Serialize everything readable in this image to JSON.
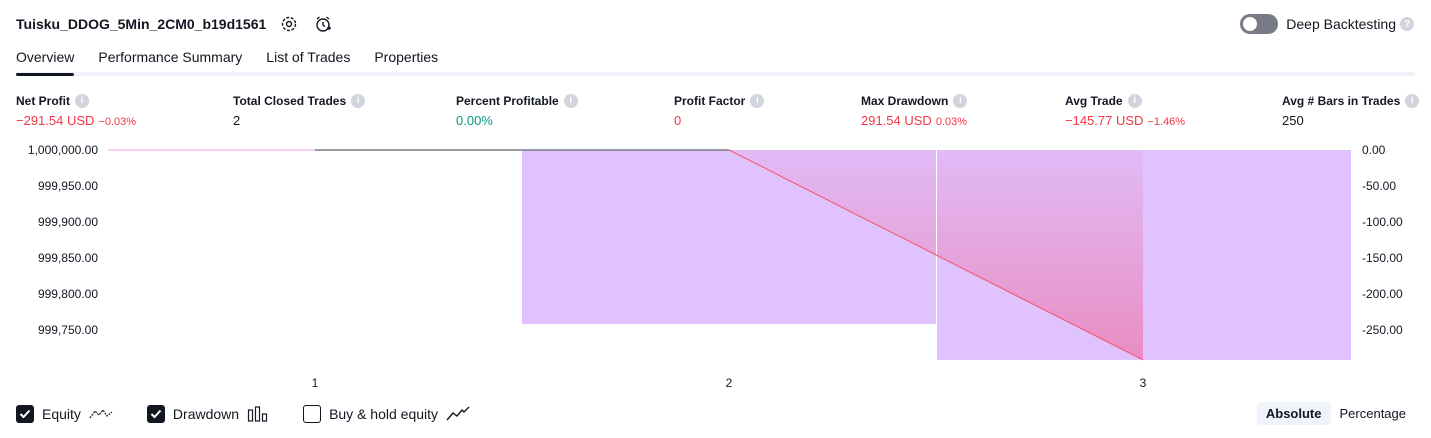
{
  "header": {
    "strategy_name": "Tuisku_DDOG_5Min_2CM0_b19d1561",
    "deep_backtesting_label": "Deep Backtesting",
    "help_glyph": "?"
  },
  "tabs": [
    {
      "label": "Overview",
      "active": true
    },
    {
      "label": "Performance Summary",
      "active": false
    },
    {
      "label": "List of Trades",
      "active": false
    },
    {
      "label": "Properties",
      "active": false
    }
  ],
  "metrics": [
    {
      "title": "Net Profit",
      "value": "−291.54 USD",
      "pct": "−0.03%",
      "tone": "neg"
    },
    {
      "title": "Total Closed Trades",
      "value": "2",
      "pct": "",
      "tone": "neutral"
    },
    {
      "title": "Percent Profitable",
      "value": "0.00%",
      "pct": "",
      "tone": "pos"
    },
    {
      "title": "Profit Factor",
      "value": "0",
      "pct": "",
      "tone": "neg"
    },
    {
      "title": "Max Drawdown",
      "value": "291.54 USD",
      "pct": "0.03%",
      "tone": "neg"
    },
    {
      "title": "Avg Trade",
      "value": "−145.77 USD",
      "pct": "−1.46%",
      "tone": "neg"
    },
    {
      "title": "Avg # Bars in Trades",
      "value": "250",
      "pct": "",
      "tone": "neutral"
    }
  ],
  "info_glyph": "i",
  "chart_data": {
    "type": "line",
    "x_categories": [
      "1",
      "2",
      "3"
    ],
    "left_axis_ticks": [
      "1,000,000.00",
      "999,950.00",
      "999,900.00",
      "999,850.00",
      "999,800.00",
      "999,750.00"
    ],
    "right_axis_ticks": [
      "0.00",
      "-50.00",
      "-100.00",
      "-150.00",
      "-200.00",
      "-250.00"
    ],
    "equity": {
      "x": [
        0,
        1,
        2,
        3
      ],
      "y": [
        1000000.0,
        1000000.0,
        1000000.0,
        999708.46
      ]
    },
    "drawdown_bars": [
      {
        "trade": 2,
        "value": -241.8
      },
      {
        "trade": 3,
        "value": -291.54
      }
    ],
    "colors": {
      "equity_line": "#f7525f",
      "equity_flat": "#787b86",
      "drawdown_fill": "#e0c2ff",
      "equity_area": "#f06292",
      "initial_line": "#f0a6d8"
    }
  },
  "footer": {
    "legend": [
      {
        "label": "Equity",
        "checked": true,
        "icon": "equity-line-icon"
      },
      {
        "label": "Drawdown",
        "checked": true,
        "icon": "drawdown-bars-icon"
      },
      {
        "label": "Buy & hold equity",
        "checked": false,
        "icon": "buyhold-line-icon"
      }
    ],
    "modes": [
      {
        "label": "Absolute",
        "active": true
      },
      {
        "label": "Percentage",
        "active": false
      }
    ]
  }
}
